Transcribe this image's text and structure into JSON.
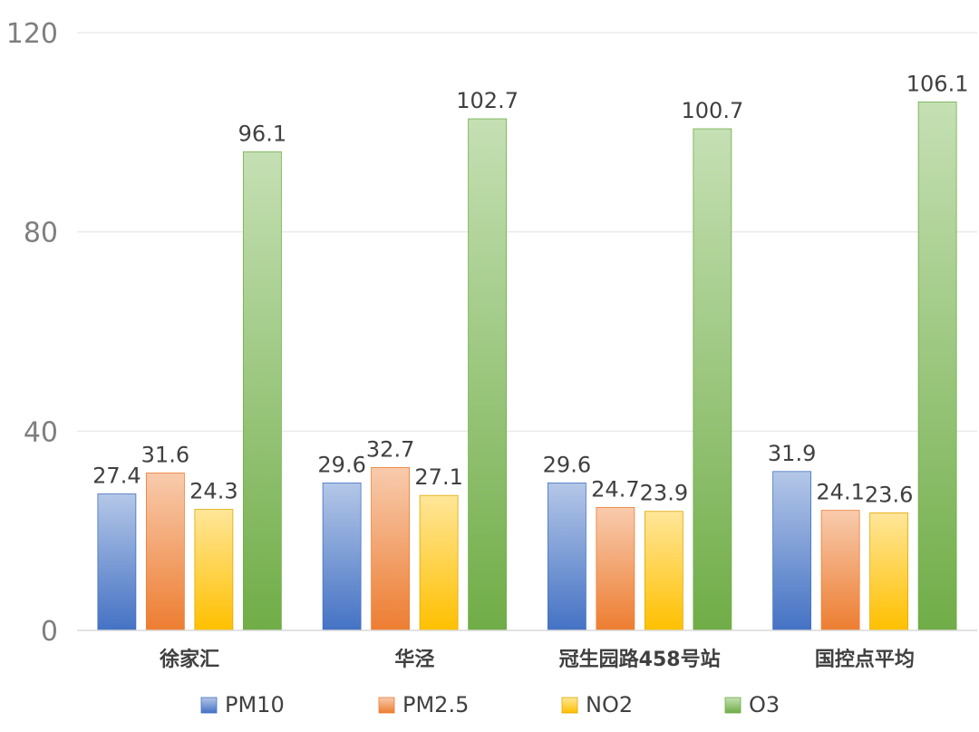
{
  "chart_data": {
    "type": "bar",
    "title": "",
    "xlabel": "",
    "ylabel": "",
    "categories": [
      "徐家汇",
      "华泾",
      "冠生园路458号站",
      "国控点平均"
    ],
    "series": [
      {
        "name": "PM10",
        "values": [
          27.4,
          29.6,
          29.6,
          31.9
        ],
        "color_top": "#b4c7e7",
        "color_bottom": "#4472c4",
        "stroke": "#4472c4"
      },
      {
        "name": "PM2.5",
        "values": [
          31.6,
          32.7,
          24.7,
          24.1
        ],
        "color_top": "#f8cbad",
        "color_bottom": "#ed7d31",
        "stroke": "#ed7d31"
      },
      {
        "name": "NO2",
        "values": [
          24.3,
          27.1,
          23.9,
          23.6
        ],
        "color_top": "#ffe699",
        "color_bottom": "#ffc000",
        "stroke": "#e0a800"
      },
      {
        "name": "O3",
        "values": [
          96.1,
          102.7,
          100.7,
          106.1
        ],
        "color_top": "#c5e0b4",
        "color_bottom": "#70ad47",
        "stroke": "#70ad47"
      }
    ],
    "ylim": [
      0,
      120
    ],
    "yticks": [
      0,
      40,
      80,
      120
    ],
    "grid": true,
    "legend_position": "bottom"
  }
}
